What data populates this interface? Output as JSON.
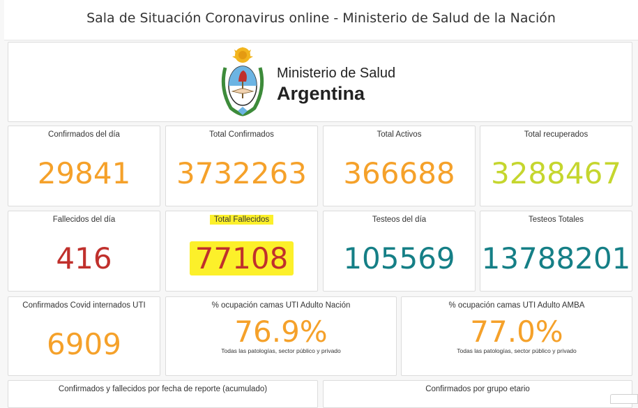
{
  "header": {
    "title": "Sala de Situación Coronavirus online - Ministerio de Salud de la Nación"
  },
  "logo": {
    "line1": "Ministerio de Salud",
    "line2": "Argentina"
  },
  "colors": {
    "orange": "#f5a12a",
    "lime": "#c5d62e",
    "red": "#c0302c",
    "teal": "#157f86",
    "highlight": "#fcf02a"
  },
  "cards": {
    "confirmados_dia": {
      "label": "Confirmados del día",
      "value": "29841"
    },
    "total_confirmados": {
      "label": "Total Confirmados",
      "value": "3732263"
    },
    "total_activos": {
      "label": "Total Activos",
      "value": "366688"
    },
    "total_recuperados": {
      "label": "Total recuperados",
      "value": "3288467"
    },
    "fallecidos_dia": {
      "label": "Fallecidos del día",
      "value": "416"
    },
    "total_fallecidos": {
      "label": "Total Fallecidos",
      "value": "77108"
    },
    "testeos_dia": {
      "label": "Testeos del día",
      "value": "105569"
    },
    "testeos_totales": {
      "label": "Testeos Totales",
      "value": "13788201"
    },
    "internados_uti": {
      "label": "Confirmados Covid internados UTI",
      "value": "6909"
    },
    "ocupacion_nacion": {
      "label": "% ocupación camas UTI Adulto Nación",
      "value": "76.9%",
      "sub": "Todas las patologías, sector público y privado"
    },
    "ocupacion_amba": {
      "label": "% ocupación camas UTI Adulto AMBA",
      "value": "77.0%",
      "sub": "Todas las patologías, sector público y privado"
    }
  },
  "bottom": {
    "acumulado_label": "Confirmados y fallecidos por fecha de reporte (acumulado)",
    "grupo_etario_label": "Confirmados por grupo etario"
  }
}
